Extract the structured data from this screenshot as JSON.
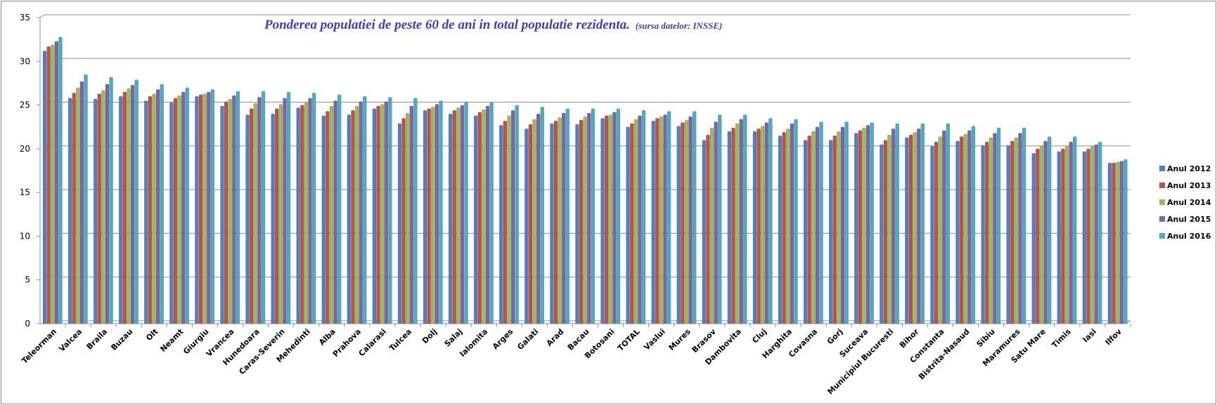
{
  "chart_data": {
    "type": "bar",
    "title": "Ponderea populatiei de peste 60 de ani in total populatie rezidenta.",
    "subtitle": "(sursa datelor: INSSE)",
    "xlabel": "",
    "ylabel": "",
    "ylim": [
      0,
      35
    ],
    "yticks": [
      "0",
      "5",
      "10",
      "15",
      "20",
      "25",
      "30",
      "35"
    ],
    "grid": true,
    "legend_position": "right",
    "categories": [
      "Teleorman",
      "Valcea",
      "Braila",
      "Buzau",
      "Olt",
      "Neamt",
      "Giurgiu",
      "Vrancea",
      "Hunedoara",
      "Caras-Severin",
      "Mehedinti",
      "Alba",
      "Prahova",
      "Calarasi",
      "Tulcea",
      "Dolj",
      "Salaj",
      "Ialomita",
      "Arges",
      "Galati",
      "Arad",
      "Bacau",
      "Botosani",
      "TOTAL",
      "Vaslui",
      "Mures",
      "Brasov",
      "Dambovita",
      "Cluj",
      "Harghita",
      "Covasna",
      "Gorj",
      "Suceava",
      "Municipiul Bucuresti",
      "Bihor",
      "Constanta",
      "Bistrita-Nasaud",
      "Sibiu",
      "Maramures",
      "Satu Mare",
      "Timis",
      "Iasi",
      "Ilfov"
    ],
    "series": [
      {
        "name": "Anul 2012",
        "color": "#4f81bd",
        "values": [
          31.1,
          25.7,
          25.6,
          25.9,
          25.4,
          25.2,
          25.9,
          24.8,
          23.8,
          23.9,
          24.6,
          23.7,
          23.8,
          24.5,
          22.8,
          24.3,
          23.9,
          23.7,
          22.6,
          22.2,
          22.8,
          22.7,
          23.4,
          22.4,
          23.1,
          22.5,
          20.9,
          21.9,
          21.9,
          21.4,
          20.9,
          20.9,
          21.7,
          20.4,
          21.2,
          20.2,
          20.8,
          20.3,
          20.3,
          19.4,
          19.6,
          19.6,
          18.3
        ]
      },
      {
        "name": "Anul 2013",
        "color": "#c0504d",
        "values": [
          31.6,
          26.3,
          26.2,
          26.4,
          25.9,
          25.7,
          26.1,
          25.3,
          24.5,
          24.5,
          24.9,
          24.2,
          24.3,
          24.8,
          23.4,
          24.5,
          24.3,
          24.1,
          23.1,
          22.7,
          23.1,
          23.2,
          23.7,
          22.8,
          23.4,
          22.9,
          21.5,
          22.3,
          22.2,
          21.8,
          21.4,
          21.4,
          22.0,
          20.9,
          21.5,
          20.7,
          21.3,
          20.7,
          20.8,
          19.9,
          19.9,
          19.9,
          18.3
        ]
      },
      {
        "name": "Anul 2014",
        "color": "#9bbb59",
        "values": [
          31.8,
          26.9,
          26.6,
          26.8,
          26.2,
          26.0,
          26.2,
          25.6,
          25.1,
          25.0,
          25.2,
          24.8,
          24.8,
          25.0,
          24.0,
          24.7,
          24.6,
          24.4,
          23.7,
          23.3,
          23.5,
          23.6,
          23.8,
          23.3,
          23.6,
          23.2,
          22.3,
          22.8,
          22.5,
          22.2,
          21.9,
          21.9,
          22.3,
          21.5,
          21.8,
          21.3,
          21.6,
          21.2,
          21.2,
          20.3,
          20.2,
          20.2,
          18.4
        ]
      },
      {
        "name": "Anul 2015",
        "color": "#8064a2",
        "values": [
          32.2,
          27.6,
          27.3,
          27.2,
          26.7,
          26.4,
          26.4,
          26.0,
          25.8,
          25.7,
          25.7,
          25.4,
          25.3,
          25.3,
          24.8,
          25.0,
          24.9,
          24.8,
          24.3,
          23.9,
          24.0,
          24.0,
          24.1,
          23.7,
          23.8,
          23.6,
          23.0,
          23.3,
          22.9,
          22.8,
          22.4,
          22.4,
          22.6,
          22.2,
          22.2,
          22.0,
          22.0,
          21.7,
          21.7,
          20.8,
          20.7,
          20.4,
          18.5
        ]
      },
      {
        "name": "Anul 2016",
        "color": "#4bacc6",
        "values": [
          32.7,
          28.4,
          28.1,
          27.8,
          27.3,
          26.9,
          26.7,
          26.5,
          26.5,
          26.4,
          26.3,
          26.1,
          25.9,
          25.8,
          25.7,
          25.4,
          25.3,
          25.2,
          24.9,
          24.7,
          24.5,
          24.5,
          24.5,
          24.3,
          24.2,
          24.2,
          23.8,
          23.8,
          23.4,
          23.3,
          23.0,
          23.0,
          22.9,
          22.8,
          22.8,
          22.8,
          22.5,
          22.3,
          22.3,
          21.3,
          21.3,
          20.7,
          18.7
        ]
      }
    ]
  }
}
